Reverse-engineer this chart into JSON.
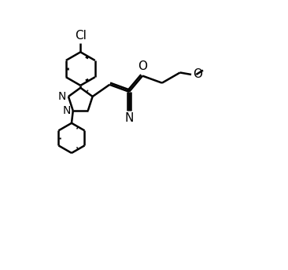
{
  "bg_color": "#ffffff",
  "line_color": "#000000",
  "line_width": 1.8,
  "font_size": 11,
  "figure_size": [
    3.66,
    3.44
  ],
  "dpi": 100,
  "xlim": [
    -0.3,
    7.5
  ],
  "ylim": [
    0.2,
    9.5
  ]
}
